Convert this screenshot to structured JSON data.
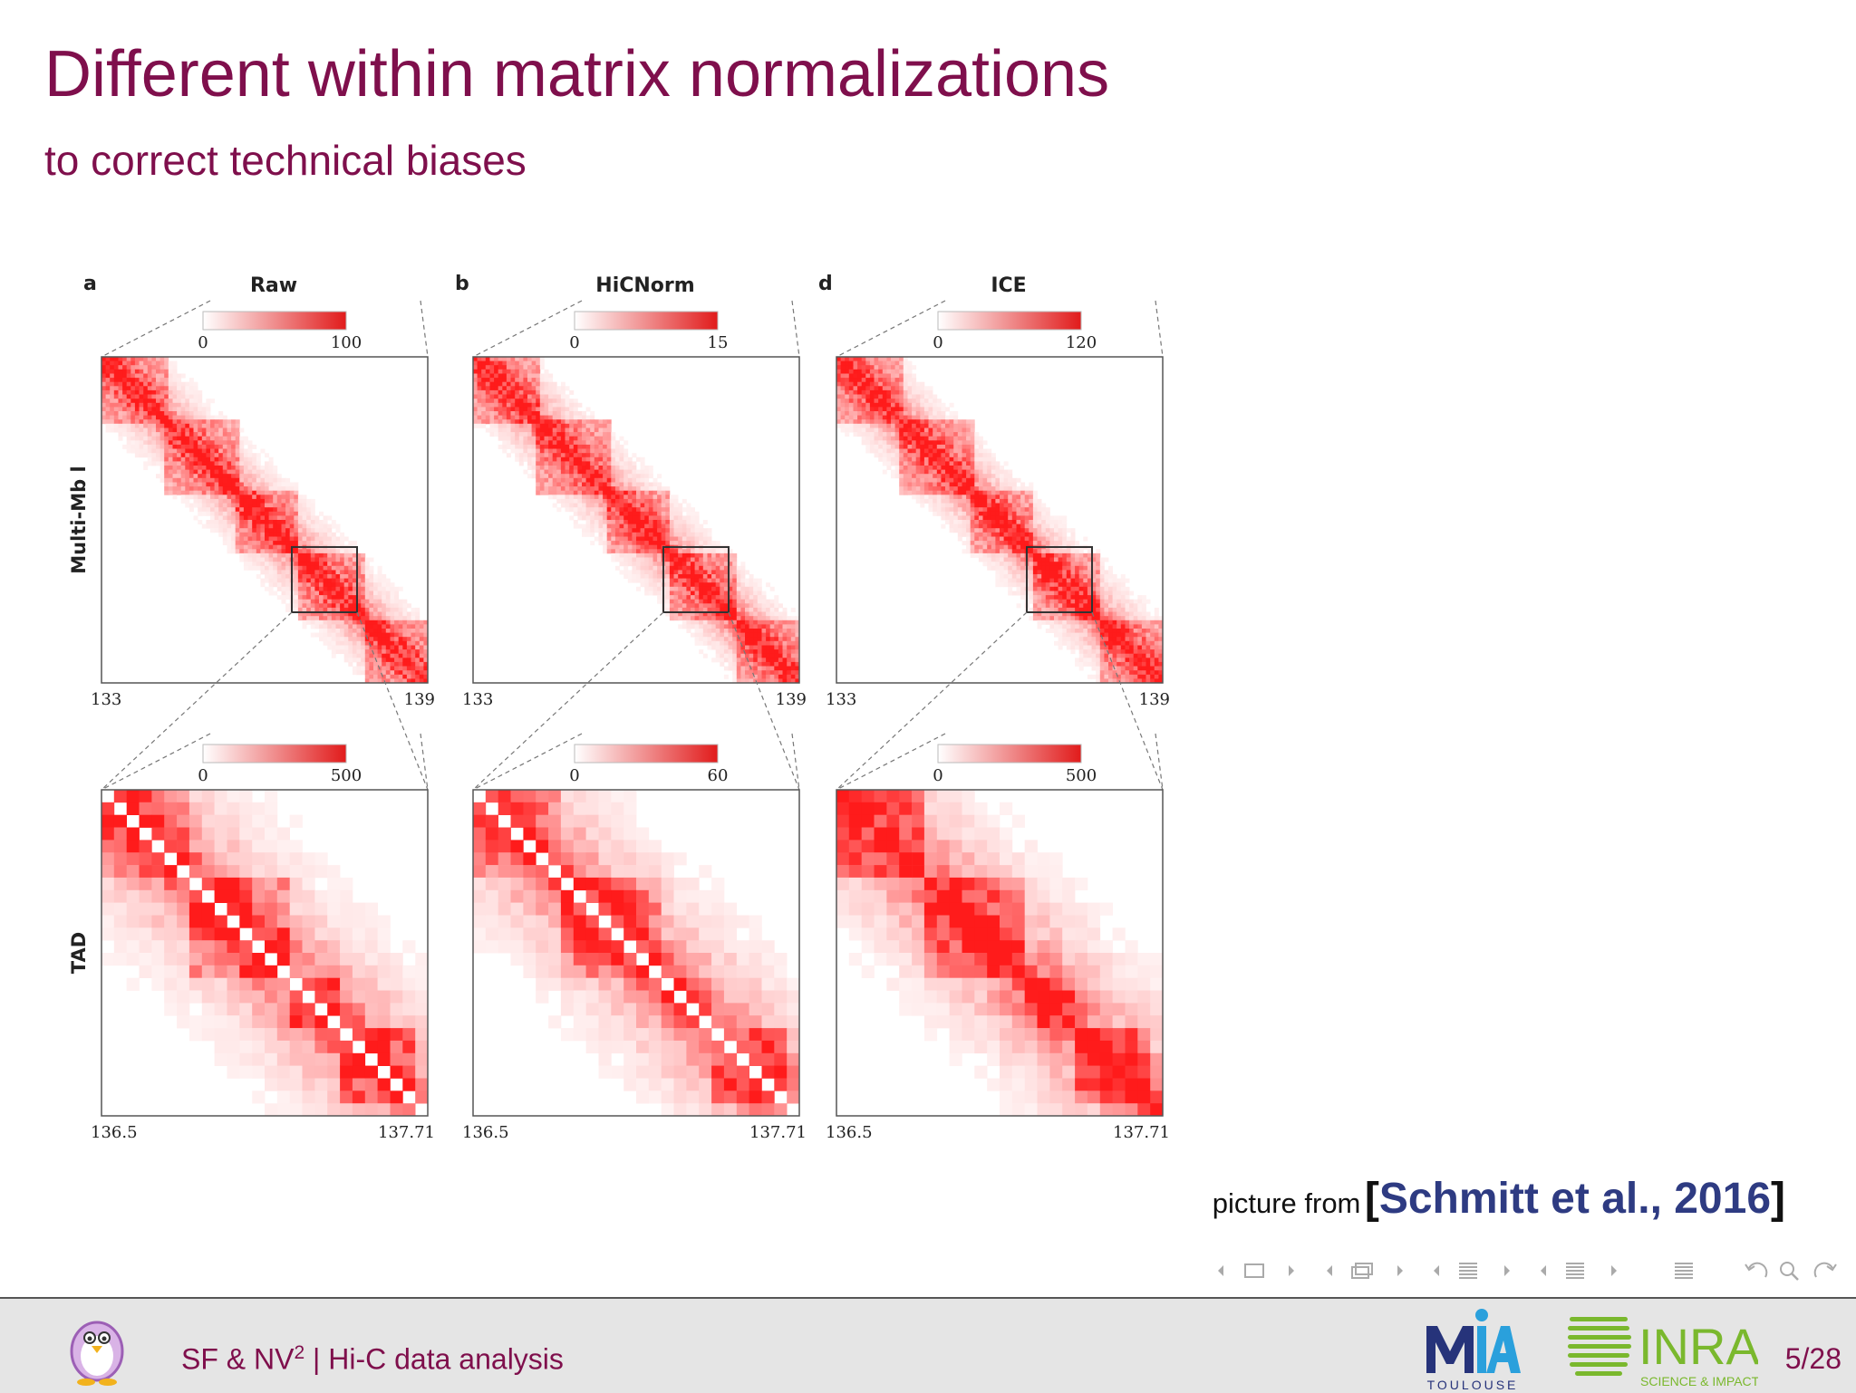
{
  "slide": {
    "title": "Different within matrix normalizations",
    "subtitle": "to correct technical biases"
  },
  "figure": {
    "panel_letters": [
      "a",
      "b",
      "d"
    ],
    "row_labels": [
      "Multi-Mb l",
      "TAD"
    ],
    "columns": [
      {
        "letter": "a",
        "method": "Raw",
        "top_scale": [
          "0",
          "100"
        ],
        "top_axis": [
          "133",
          "139"
        ],
        "bottom_scale": [
          "0",
          "500"
        ],
        "bottom_axis": [
          "136.5",
          "137.71"
        ]
      },
      {
        "letter": "b",
        "method": "HiCNorm",
        "top_scale": [
          "0",
          "15"
        ],
        "top_axis": [
          "133",
          "139"
        ],
        "bottom_scale": [
          "0",
          "60"
        ],
        "bottom_axis": [
          "136.5",
          "137.71"
        ]
      },
      {
        "letter": "d",
        "method": "ICE",
        "top_scale": [
          "0",
          "120"
        ],
        "top_axis": [
          "133",
          "139"
        ],
        "bottom_scale": [
          "0",
          "500"
        ],
        "bottom_axis": [
          "136.5",
          "137.71"
        ]
      }
    ],
    "colors": {
      "heat_low": "#ffffff",
      "heat_high": "#e11b1b"
    }
  },
  "caption": {
    "prefix": "picture from",
    "open_bracket": "[",
    "citation": "Schmitt et al., 2016",
    "close_bracket": "]"
  },
  "footer": {
    "author": "SF & NV",
    "author_sup": "2",
    "separator": " | ",
    "talk_title": "Hi-C data analysis",
    "page": "5/28",
    "mia_text": "TOULOUSE",
    "inra_text": "INRA",
    "inra_sub": "SCIENCE & IMPACT"
  },
  "colors": {
    "title": "#7f0f4c",
    "citation": "#2e3b82",
    "footer_bg": "#e5e5e5"
  },
  "nav_icons": [
    "arrow-left-icon",
    "frame-icon",
    "arrow-right-icon",
    "arrow-left-icon",
    "subsection-icon",
    "arrow-right-icon",
    "arrow-left-icon",
    "section-icon",
    "arrow-right-icon",
    "arrow-left-icon",
    "slide-list-icon",
    "arrow-right-icon",
    "menu-icon",
    "undo-icon",
    "search-icon",
    "redo-icon"
  ]
}
